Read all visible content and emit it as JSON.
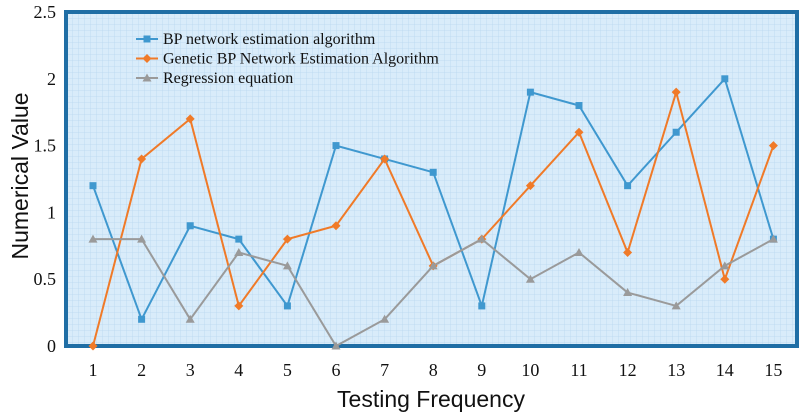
{
  "chart_data": {
    "type": "line",
    "xlabel": "Testing Frequency",
    "ylabel": "Numerical Value",
    "categories": [
      "1",
      "2",
      "3",
      "4",
      "5",
      "6",
      "7",
      "8",
      "9",
      "10",
      "11",
      "12",
      "13",
      "14",
      "15"
    ],
    "y_ticks": [
      "0",
      "0.5",
      "1",
      "1.5",
      "2",
      "2.5"
    ],
    "ylim": [
      0,
      2.5
    ],
    "legend_position": "top-left",
    "grid": true,
    "background": "light blue fine grid with dark blue frame",
    "series": [
      {
        "name": "BP network estimation algorithm",
        "color": "#3f98cf",
        "marker": "square",
        "values": [
          1.2,
          0.2,
          0.9,
          0.8,
          0.3,
          1.5,
          1.4,
          1.3,
          0.3,
          1.9,
          1.8,
          1.2,
          1.6,
          2.0,
          0.8
        ]
      },
      {
        "name": "Genetic BP Network Estimation Algorithm",
        "color": "#f07a28",
        "marker": "diamond",
        "values": [
          0.0,
          1.4,
          1.7,
          0.3,
          0.8,
          0.9,
          1.4,
          0.6,
          0.8,
          1.2,
          1.6,
          0.7,
          1.9,
          0.5,
          1.5
        ]
      },
      {
        "name": "Regression equation",
        "color": "#9a9a9a",
        "marker": "triangle",
        "values": [
          0.8,
          0.8,
          0.2,
          0.7,
          0.6,
          0.0,
          0.2,
          0.6,
          0.8,
          0.5,
          0.7,
          0.4,
          0.3,
          0.6,
          0.8
        ]
      }
    ]
  },
  "colors": {
    "plot_fill": "#d9ecfa",
    "plot_grid": "#b9d7ef",
    "frame": "#1f6ea5"
  }
}
